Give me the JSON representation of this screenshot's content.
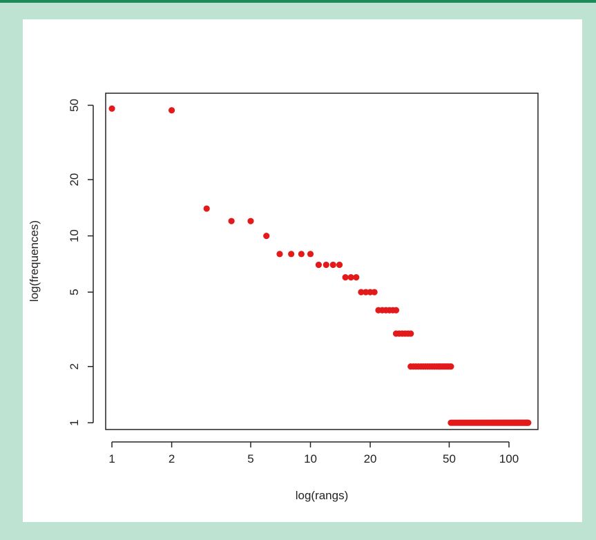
{
  "chart_data": {
    "type": "scatter",
    "x_scale": "log",
    "y_scale": "log",
    "xlabel": "log(rangs)",
    "ylabel": "log(frequences)",
    "xlim": [
      0.93,
      140
    ],
    "ylim": [
      0.92,
      58
    ],
    "x_ticks": [
      1,
      2,
      5,
      10,
      20,
      50,
      100
    ],
    "x_tick_labels": [
      "1",
      "2",
      "5",
      "10",
      "20",
      "50",
      "100"
    ],
    "y_ticks": [
      1,
      2,
      5,
      10,
      20,
      50
    ],
    "y_tick_labels": [
      "1",
      "2",
      "5",
      "10",
      "20",
      "50"
    ],
    "point_color": "#e31a1c",
    "grid": false,
    "legend": "none",
    "groups": [
      {
        "x_from": 1,
        "x_to": 1,
        "y": 48
      },
      {
        "x_from": 2,
        "x_to": 2,
        "y": 47
      },
      {
        "x_from": 3,
        "x_to": 3,
        "y": 14
      },
      {
        "x_from": 4,
        "x_to": 5,
        "y": 12
      },
      {
        "x_from": 6,
        "x_to": 6,
        "y": 10
      },
      {
        "x_from": 7,
        "x_to": 10,
        "y": 8
      },
      {
        "x_from": 11,
        "x_to": 14,
        "y": 7
      },
      {
        "x_from": 15,
        "x_to": 17,
        "y": 6
      },
      {
        "x_from": 18,
        "x_to": 21,
        "y": 5
      },
      {
        "x_from": 22,
        "x_to": 27,
        "y": 4
      },
      {
        "x_from": 27,
        "x_to": 32,
        "y": 3
      },
      {
        "x_from": 32,
        "x_to": 51,
        "y": 2
      },
      {
        "x_from": 51,
        "x_to": 125,
        "y": 1
      }
    ]
  }
}
